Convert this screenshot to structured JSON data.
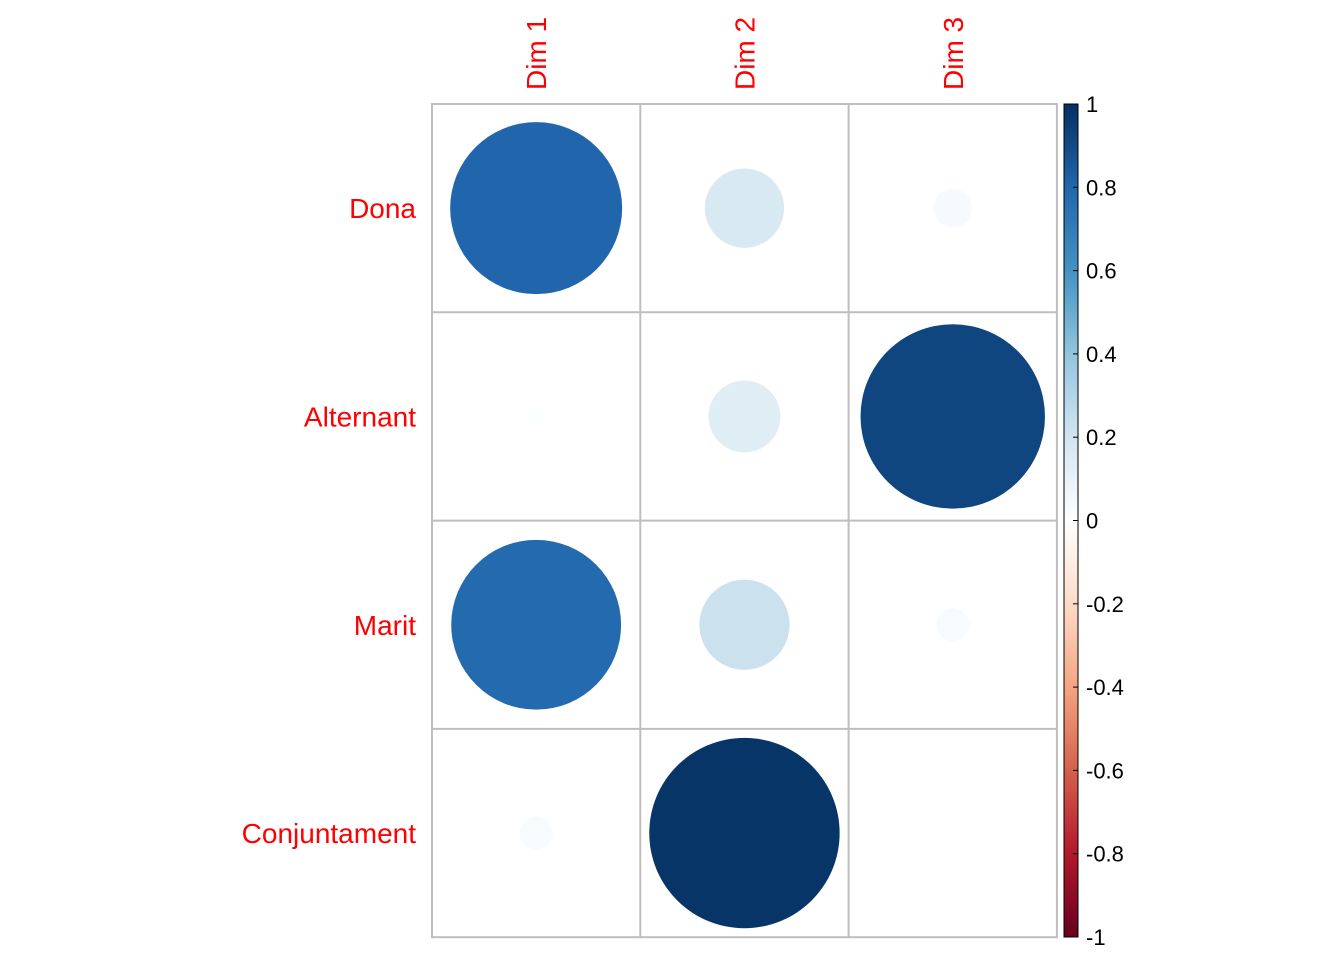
{
  "chart_data": {
    "type": "heatmap",
    "glyph": "circle",
    "rows": [
      "Dona",
      "Alternant",
      "Marit",
      "Conjuntament"
    ],
    "columns": [
      "Dim 1",
      "Dim 2",
      "Dim 3"
    ],
    "values": [
      [
        0.8,
        0.17,
        0.04
      ],
      [
        0.01,
        0.14,
        0.92
      ],
      [
        0.78,
        0.22,
        0.03
      ],
      [
        0.03,
        0.98,
        0.0
      ]
    ],
    "colorbar": {
      "range": [
        -1,
        1
      ],
      "ticks": [
        "1",
        "0.8",
        "0.6",
        "0.4",
        "0.2",
        "0",
        "-0.2",
        "-0.4",
        "-0.6",
        "-0.8",
        "-1"
      ],
      "palette": [
        "#67001F",
        "#B2182B",
        "#D6604D",
        "#F4A582",
        "#FDDBC7",
        "#FFFFFF",
        "#D1E5F0",
        "#92C5DE",
        "#4393C3",
        "#2166AC",
        "#053061"
      ]
    },
    "label_color": "#FF0000",
    "grid_color": "#BEBEBE",
    "grid": true
  }
}
